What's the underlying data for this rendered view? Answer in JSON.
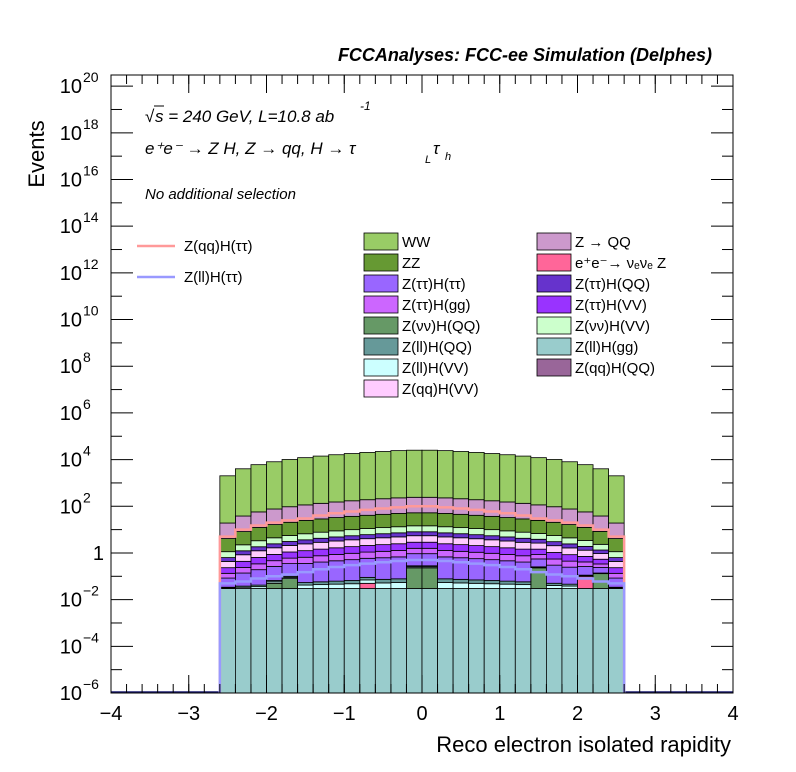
{
  "chart_data": {
    "type": "bar",
    "stacked": true,
    "log_y": true,
    "header": "FCCAnalyses: FCC-ee Simulation (Delphes)",
    "xlabel": "Reco electron isolated rapidity",
    "ylabel": "Events",
    "xlim": [
      -4,
      4
    ],
    "ylim": [
      1e-06,
      3e+20
    ],
    "x_ticks": [
      "−4",
      "−3",
      "−2",
      "−1",
      "0",
      "1",
      "2",
      "3",
      "4"
    ],
    "y_ticks": [
      {
        "value": 1e-06,
        "base": "10",
        "exp": "−6"
      },
      {
        "value": 0.0001,
        "base": "10",
        "exp": "−4"
      },
      {
        "value": 0.01,
        "base": "10",
        "exp": "−2"
      },
      {
        "value": 1,
        "base": "1",
        "exp": ""
      },
      {
        "value": 100.0,
        "base": "10",
        "exp": "2"
      },
      {
        "value": 10000.0,
        "base": "10",
        "exp": "4"
      },
      {
        "value": 1000000.0,
        "base": "10",
        "exp": "6"
      },
      {
        "value": 100000000.0,
        "base": "10",
        "exp": "8"
      },
      {
        "value": 10000000000.0,
        "base": "10",
        "exp": "10"
      },
      {
        "value": 1000000000000.0,
        "base": "10",
        "exp": "12"
      },
      {
        "value": 100000000000000.0,
        "base": "10",
        "exp": "14"
      },
      {
        "value": 1e+16,
        "base": "10",
        "exp": "16"
      },
      {
        "value": 1e+18,
        "base": "10",
        "exp": "18"
      },
      {
        "value": 1e+20,
        "base": "10",
        "exp": "20"
      }
    ],
    "bin_edges": [
      -2.6,
      -2.4,
      -2.2,
      -2.0,
      -1.8,
      -1.6,
      -1.4,
      -1.2,
      -1.0,
      -0.8,
      -0.6,
      -0.4,
      -0.2,
      0.0,
      0.2,
      0.4,
      0.6,
      0.8,
      1.0,
      1.2,
      1.4,
      1.6,
      1.8,
      2.0,
      2.2,
      2.4,
      2.6
    ],
    "annotations": {
      "energy_label": "s = 240 GeV, L=10.8 ab",
      "energy_sqrt": "√",
      "energy_exp": "-1",
      "process_main": "e⁺e⁻ → Z H, Z  → qq, H  →  τ",
      "process_sub1": "L",
      "process_tau2": "τ",
      "process_sub2": "h",
      "selection": "No additional selection"
    },
    "series": [
      {
        "name": "Z(ll)H(gg)",
        "color": "#99cccc",
        "values": [
          0.03,
          0.03,
          0.03,
          0.03,
          0.03,
          0.03,
          0.03,
          0.03,
          0.03,
          0.03,
          0.03,
          0.03,
          0.03,
          0.03,
          0.03,
          0.03,
          0.03,
          0.03,
          0.03,
          0.03,
          0.03,
          0.03,
          0.03,
          0.03,
          0.03,
          0.03
        ]
      },
      {
        "name": "Z(νν)H(QQ)",
        "color": "#669966",
        "values": [
          0,
          0,
          0,
          0.02,
          0.05,
          0,
          0,
          0,
          0,
          0,
          0,
          0,
          0.2,
          0.2,
          0,
          0,
          0,
          0,
          0,
          0,
          0.2,
          0,
          0,
          0,
          0.1,
          0
        ]
      },
      {
        "name": "e⁺e⁻→ νₑνₑ Z",
        "color": "#ff6699",
        "values": [
          0,
          0,
          0,
          0,
          0,
          0,
          0,
          0,
          0,
          0.02,
          0,
          0,
          0,
          0,
          0,
          0,
          0,
          0,
          0,
          0,
          0,
          0,
          0,
          0.07,
          0,
          0
        ]
      },
      {
        "name": "Z(qq)H(QQ)",
        "color": "#996699",
        "values": [
          0,
          0,
          0,
          0,
          0,
          0,
          0,
          0,
          0,
          0,
          0,
          0,
          0,
          0,
          0,
          0,
          0,
          0,
          0,
          0,
          0,
          0.0003,
          0,
          0,
          0,
          0
        ]
      },
      {
        "name": "Z(ll)H(VV)",
        "color": "#ccffff",
        "values": [
          0.002,
          0.004,
          0.006,
          0.008,
          0.01,
          0.012,
          0.014,
          0.016,
          0.018,
          0.02,
          0.022,
          0.024,
          0.026,
          0.026,
          0.024,
          0.022,
          0.02,
          0.018,
          0.016,
          0.014,
          0.012,
          0.01,
          0.008,
          0.006,
          0.004,
          0.002
        ]
      },
      {
        "name": "Z(ll)H(QQ)",
        "color": "#669999",
        "values": [
          0.002,
          0.004,
          0.006,
          0.008,
          0.01,
          0.012,
          0.014,
          0.016,
          0.018,
          0.02,
          0.022,
          0.024,
          0.026,
          0.026,
          0.024,
          0.022,
          0.02,
          0.018,
          0.016,
          0.014,
          0.012,
          0.01,
          0.008,
          0.006,
          0.004,
          0.002
        ]
      },
      {
        "name": "Z(ττ)H(ττ)",
        "color": "#9966ff",
        "values": [
          0.05,
          0.1,
          0.15,
          0.2,
          0.25,
          0.3,
          0.35,
          0.4,
          0.45,
          0.5,
          0.55,
          0.6,
          0.65,
          0.65,
          0.6,
          0.55,
          0.5,
          0.45,
          0.4,
          0.35,
          0.3,
          0.25,
          0.2,
          0.15,
          0.1,
          0.05
        ]
      },
      {
        "name": "Z(ττ)H(gg)",
        "color": "#cc66ff",
        "values": [
          0.05,
          0.1,
          0.15,
          0.2,
          0.25,
          0.3,
          0.35,
          0.4,
          0.45,
          0.5,
          0.55,
          0.6,
          0.65,
          0.65,
          0.6,
          0.55,
          0.5,
          0.45,
          0.4,
          0.35,
          0.3,
          0.25,
          0.2,
          0.15,
          0.1,
          0.05
        ]
      },
      {
        "name": "Z(ττ)H(VV)",
        "color": "#9933ff",
        "values": [
          0.1,
          0.2,
          0.3,
          0.4,
          0.5,
          0.6,
          0.7,
          0.8,
          0.9,
          1.0,
          1.1,
          1.2,
          1.3,
          1.3,
          1.2,
          1.1,
          1.0,
          0.9,
          0.8,
          0.7,
          0.6,
          0.5,
          0.4,
          0.3,
          0.2,
          0.1
        ]
      },
      {
        "name": "Z(qq)H(VV)",
        "color": "#ffccff",
        "values": [
          0.2,
          0.4,
          0.6,
          0.8,
          1.0,
          1.2,
          1.4,
          1.6,
          1.8,
          2.0,
          2.2,
          2.4,
          2.6,
          2.6,
          2.4,
          2.2,
          2.0,
          1.8,
          1.6,
          1.4,
          1.2,
          1.0,
          0.8,
          0.6,
          0.4,
          0.2
        ]
      },
      {
        "name": "Z(ττ)H(QQ)",
        "color": "#6633cc",
        "values": [
          0.2,
          0.4,
          0.6,
          0.8,
          1.0,
          1.2,
          1.4,
          1.6,
          1.8,
          2.0,
          2.2,
          2.4,
          2.6,
          2.6,
          2.4,
          2.2,
          2.0,
          1.8,
          1.6,
          1.4,
          1.2,
          1.0,
          0.8,
          0.6,
          0.4,
          0.2
        ]
      },
      {
        "name": "Z(νν)H(VV)",
        "color": "#ccffcc",
        "values": [
          0.5,
          1,
          1.5,
          2,
          2.5,
          3,
          3.5,
          4,
          4.5,
          5,
          5.5,
          6,
          6.5,
          6.5,
          6,
          5.5,
          5,
          4.5,
          4,
          3.5,
          3,
          2.5,
          2,
          1.5,
          1,
          0.5
        ]
      },
      {
        "name": "ZZ",
        "color": "#669933",
        "values": [
          3,
          6,
          9,
          12,
          15,
          18,
          21,
          24,
          27,
          30,
          33,
          36,
          38,
          38,
          36,
          33,
          30,
          27,
          24,
          21,
          18,
          15,
          12,
          9,
          6,
          3
        ]
      },
      {
        "name": "Z → QQ",
        "color": "#cc99cc",
        "values": [
          15,
          30,
          45,
          60,
          75,
          90,
          105,
          120,
          135,
          150,
          165,
          180,
          190,
          190,
          180,
          165,
          150,
          135,
          120,
          105,
          90,
          75,
          60,
          45,
          30,
          15
        ]
      },
      {
        "name": "WW",
        "color": "#99cc66",
        "values": [
          2000,
          4000,
          6000,
          8000,
          10000,
          12000,
          14000,
          16000,
          18000,
          20000,
          22000,
          24000,
          25000,
          25000,
          24000,
          22000,
          20000,
          18000,
          16000,
          14000,
          12000,
          10000,
          8000,
          6000,
          4000,
          2000
        ]
      }
    ],
    "signal_lines": [
      {
        "name": "Z(qq)H(ττ)",
        "color": "#ff9999",
        "values": [
          5,
          10,
          15,
          20,
          25,
          30,
          40,
          50,
          60,
          70,
          80,
          90,
          100,
          100,
          90,
          80,
          70,
          60,
          50,
          40,
          30,
          25,
          20,
          15,
          10,
          5
        ]
      },
      {
        "name": "Z(ll)H(ττ)",
        "color": "#9999ff",
        "values": [
          0.05,
          0.06,
          0.08,
          0.1,
          0.12,
          0.15,
          0.2,
          0.25,
          0.3,
          0.35,
          0.4,
          0.45,
          0.5,
          0.5,
          0.45,
          0.4,
          0.35,
          0.3,
          0.25,
          0.2,
          0.15,
          0.12,
          0.1,
          0.08,
          0.06,
          0.05
        ]
      }
    ],
    "legend": {
      "signals": [
        "Z(qq)H(ττ)",
        "Z(ll)H(ττ)"
      ],
      "col1": [
        "WW",
        "ZZ",
        "Z(ττ)H(ττ)",
        "Z(ττ)H(gg)",
        "Z(νν)H(QQ)",
        "Z(ll)H(QQ)",
        "Z(ll)H(VV)",
        "Z(qq)H(VV)"
      ],
      "col2": [
        "Z → QQ",
        "e⁺e⁻→ νₑνₑ Z",
        "Z(ττ)H(QQ)",
        "Z(ττ)H(VV)",
        "Z(νν)H(VV)",
        "Z(ll)H(gg)",
        "Z(qq)H(QQ)"
      ]
    }
  }
}
